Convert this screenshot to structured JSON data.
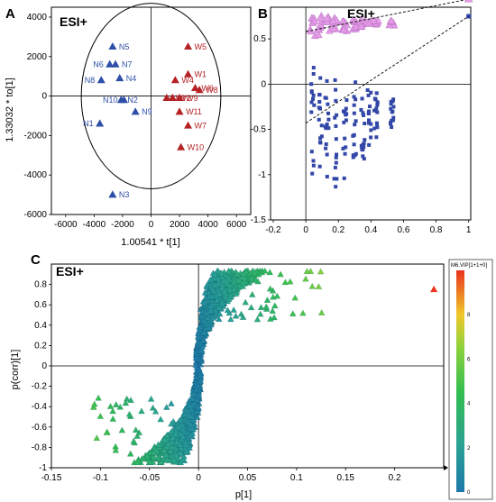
{
  "panels": {
    "A": "A",
    "B": "B",
    "C": "C"
  },
  "esi": {
    "A": "ESI+",
    "B": "ESI+",
    "C": "ESI+"
  },
  "chart_data": [
    {
      "type": "scatter",
      "panel": "A",
      "xlabel": "1.00541 * t[1]",
      "ylabel": "1.33032 * to[1]",
      "xlim": [
        -7000,
        7000
      ],
      "ylim": [
        -6000,
        4500
      ],
      "xticks": [
        -6000,
        -4000,
        -2000,
        0,
        2000,
        4000,
        6000
      ],
      "yticks": [
        -6000,
        -4000,
        -2000,
        0,
        2000,
        4000
      ],
      "series": [
        {
          "color": "#2E4FA8",
          "points": [
            {
              "label": "N1",
              "x": -3600,
              "y": -1400
            },
            {
              "label": "N2",
              "x": -2100,
              "y": -200
            },
            {
              "label": "N3",
              "x": -2700,
              "y": -5000
            },
            {
              "label": "N4",
              "x": -2200,
              "y": 900
            },
            {
              "label": "N5",
              "x": -2700,
              "y": 2500
            },
            {
              "label": "N6",
              "x": -2900,
              "y": 1600
            },
            {
              "label": "N7",
              "x": -2500,
              "y": 1600
            },
            {
              "label": "N8",
              "x": -3500,
              "y": 800
            },
            {
              "label": "N9",
              "x": -1100,
              "y": -800
            },
            {
              "label": "N10",
              "x": -1900,
              "y": -200
            }
          ]
        },
        {
          "color": "#B52226",
          "points": [
            {
              "label": "W1",
              "x": 2600,
              "y": 1100
            },
            {
              "label": "W2",
              "x": 1500,
              "y": -100
            },
            {
              "label": "W3",
              "x": 1100,
              "y": -100
            },
            {
              "label": "W4",
              "x": 1700,
              "y": 800
            },
            {
              "label": "W5",
              "x": 2600,
              "y": 2500
            },
            {
              "label": "W6",
              "x": 3100,
              "y": 400
            },
            {
              "label": "W7",
              "x": 2600,
              "y": -1500
            },
            {
              "label": "W8",
              "x": 3400,
              "y": 300
            },
            {
              "label": "W9",
              "x": 2000,
              "y": -100
            },
            {
              "label": "W10",
              "x": 2100,
              "y": -2600
            },
            {
              "label": "W11",
              "x": 2000,
              "y": -800
            }
          ]
        }
      ]
    },
    {
      "type": "scatter",
      "panel": "B",
      "xlim": [
        -0.2,
        1.0
      ],
      "ylim": [
        -1.5,
        0.85
      ],
      "xticks": [
        -0.2,
        0,
        0.2,
        0.4,
        0.6,
        0.8,
        1
      ],
      "yticks": [
        -1.5,
        -1,
        -0.5,
        0,
        0.5
      ],
      "x_columns": [
        0.04,
        0.09,
        0.13,
        0.18,
        0.24,
        0.3,
        0.35,
        0.39,
        0.43,
        0.53
      ],
      "r2_series": {
        "color": "#E39BE6",
        "y_range_per_column": [
          [
            0.52,
            0.78
          ],
          [
            0.53,
            0.76
          ],
          [
            0.57,
            0.74
          ],
          [
            0.6,
            0.73
          ],
          [
            0.58,
            0.75
          ],
          [
            0.6,
            0.72
          ],
          [
            0.63,
            0.71
          ],
          [
            0.64,
            0.72
          ],
          [
            0.65,
            0.7
          ],
          [
            0.64,
            0.7
          ]
        ],
        "end_point": [
          1.0,
          0.94
        ],
        "fit_line": [
          [
            0,
            0.58
          ],
          [
            1.0,
            0.94
          ]
        ]
      },
      "q2_series": {
        "color": "#3347A8",
        "y_range_per_column": [
          [
            -1.15,
            0.3
          ],
          [
            -1.1,
            0.1
          ],
          [
            -1.05,
            0.3
          ],
          [
            -1.15,
            0.05
          ],
          [
            -1.05,
            0.05
          ],
          [
            -0.9,
            0.05
          ],
          [
            -0.9,
            -0.1
          ],
          [
            -0.7,
            -0.05
          ],
          [
            -0.6,
            -0.05
          ],
          [
            -0.5,
            -0.1
          ]
        ],
        "end_point": [
          1.0,
          0.75
        ],
        "fit_line": [
          [
            0,
            -0.43
          ],
          [
            1.0,
            0.75
          ]
        ]
      }
    },
    {
      "type": "scatter",
      "panel": "C",
      "xlabel": "p[1]",
      "ylabel": "p(corr)[1]",
      "xlim": [
        -0.15,
        0.25
      ],
      "ylim": [
        -1.0,
        1.0
      ],
      "xticks": [
        -0.15,
        -0.1,
        -0.05,
        0,
        0.05,
        0.1,
        0.15,
        0.2
      ],
      "yticks": [
        -1,
        -0.8,
        -0.6,
        -0.4,
        -0.2,
        0,
        0.2,
        0.4,
        0.6,
        0.8
      ],
      "colorbar": {
        "title": "M6.VIP[1+1+0]",
        "ticks": [
          0,
          2,
          4,
          6,
          8
        ],
        "range": [
          0,
          10
        ]
      },
      "outlier": {
        "x": 0.24,
        "y": 0.75,
        "vip": 10
      }
    }
  ]
}
